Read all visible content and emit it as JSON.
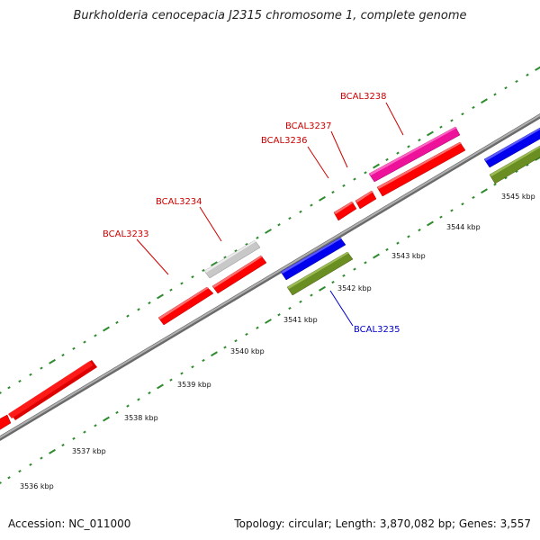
{
  "title": "Burkholderia cenocepacia J2315 chromosome 1, complete genome",
  "footer": {
    "accession": "Accession: NC_011000",
    "summary": "Topology: circular; Length: 3,870,082 bp; Genes: 3,557"
  },
  "scale": {
    "labels": [
      "3536 kbp",
      "3537 kbp",
      "3538 kbp",
      "3539 kbp",
      "3540 kbp",
      "3541 kbp",
      "3542 kbp",
      "3543 kbp",
      "3544 kbp",
      "3545 kbp"
    ]
  },
  "genes": [
    {
      "name": "BCAL3233",
      "color": "#cc0000"
    },
    {
      "name": "BCAL3234",
      "color": "#cc0000"
    },
    {
      "name": "BCAL3235",
      "color": "#0000cc"
    },
    {
      "name": "BCAL3236",
      "color": "#cc0000"
    },
    {
      "name": "BCAL3237",
      "color": "#cc0000"
    },
    {
      "name": "BCAL3238",
      "color": "#cc0000"
    }
  ],
  "colors": {
    "forward_cds": "#ff0000",
    "forward_cds_light": "#ff5a5a",
    "pseudo_gene": "#c8c8c8",
    "highlight_gene": "#ee1199",
    "reverse_gene": "#0000ee",
    "reverse_secondary": "#6b8e23",
    "backbone": "#8c8c8c",
    "tick": "#2e8b2e"
  }
}
